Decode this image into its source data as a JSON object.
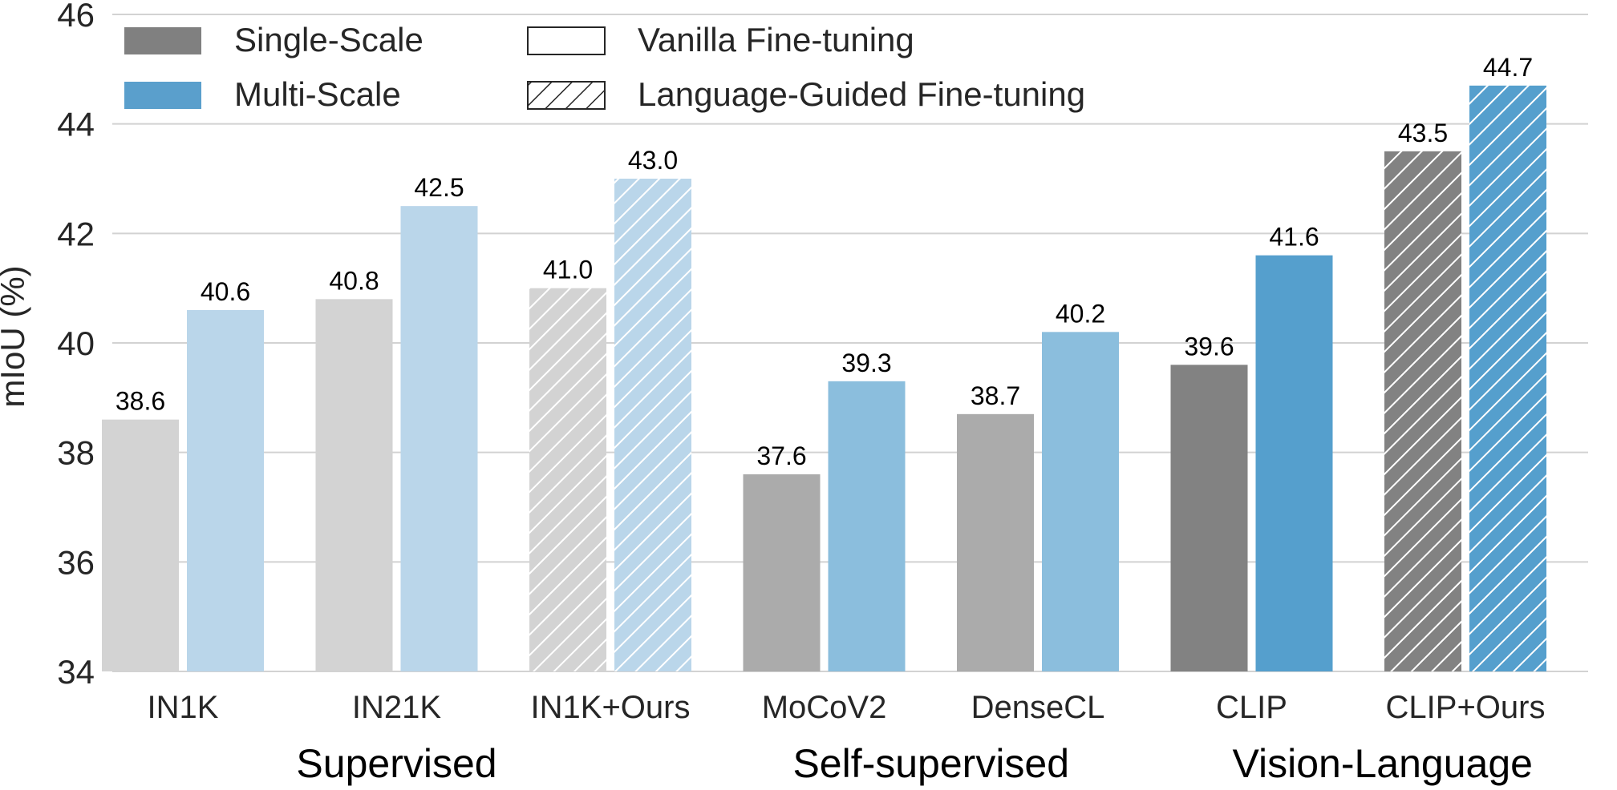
{
  "chart_data": {
    "type": "bar",
    "ylabel": "mIoU (%)",
    "ylim": [
      34,
      46
    ],
    "yticks": [
      34,
      36,
      38,
      40,
      42,
      44,
      46
    ],
    "grid": "horizontal",
    "legend_position": "top-left",
    "legend": {
      "colors": [
        {
          "label": "Single-Scale",
          "color": "#808080"
        },
        {
          "label": "Multi-Scale",
          "color": "#5a9fcc"
        }
      ],
      "fills": [
        {
          "label": "Vanilla Fine-tuning",
          "pattern": "solid"
        },
        {
          "label": "Language-Guided Fine-tuning",
          "pattern": "hatched"
        }
      ]
    },
    "categories": [
      "IN1K",
      "IN21K",
      "IN1K+Ours",
      "MoCoV2",
      "DenseCL",
      "CLIP",
      "CLIP+Ours"
    ],
    "groups": [
      {
        "label": "Supervised",
        "categories": [
          "IN1K",
          "IN21K",
          "IN1K+Ours"
        ]
      },
      {
        "label": "Self-supervised",
        "categories": [
          "MoCoV2",
          "DenseCL"
        ]
      },
      {
        "label": "Vision-Language",
        "categories": [
          "CLIP",
          "CLIP+Ours"
        ]
      }
    ],
    "series": [
      {
        "name": "Single-Scale",
        "values": [
          38.6,
          40.8,
          41.0,
          37.6,
          38.7,
          39.6,
          43.5
        ],
        "labels": [
          "38.6",
          "40.8",
          "41.0",
          "37.6",
          "38.7",
          "39.6",
          "43.5"
        ],
        "colors": [
          "#d3d3d3",
          "#d3d3d3",
          "#d3d3d3",
          "#ababab",
          "#ababab",
          "#828282",
          "#828282"
        ],
        "hatched": [
          false,
          false,
          true,
          false,
          false,
          false,
          true
        ]
      },
      {
        "name": "Multi-Scale",
        "values": [
          40.6,
          42.5,
          43.0,
          39.3,
          40.2,
          41.6,
          44.7
        ],
        "labels": [
          "40.6",
          "42.5",
          "43.0",
          "39.3",
          "40.2",
          "41.6",
          "44.7"
        ],
        "colors": [
          "#bad6ea",
          "#bad6ea",
          "#bad6ea",
          "#8bbedd",
          "#8bbedd",
          "#559fcd",
          "#559fcd"
        ],
        "hatched": [
          false,
          false,
          true,
          false,
          false,
          false,
          true
        ]
      }
    ]
  }
}
